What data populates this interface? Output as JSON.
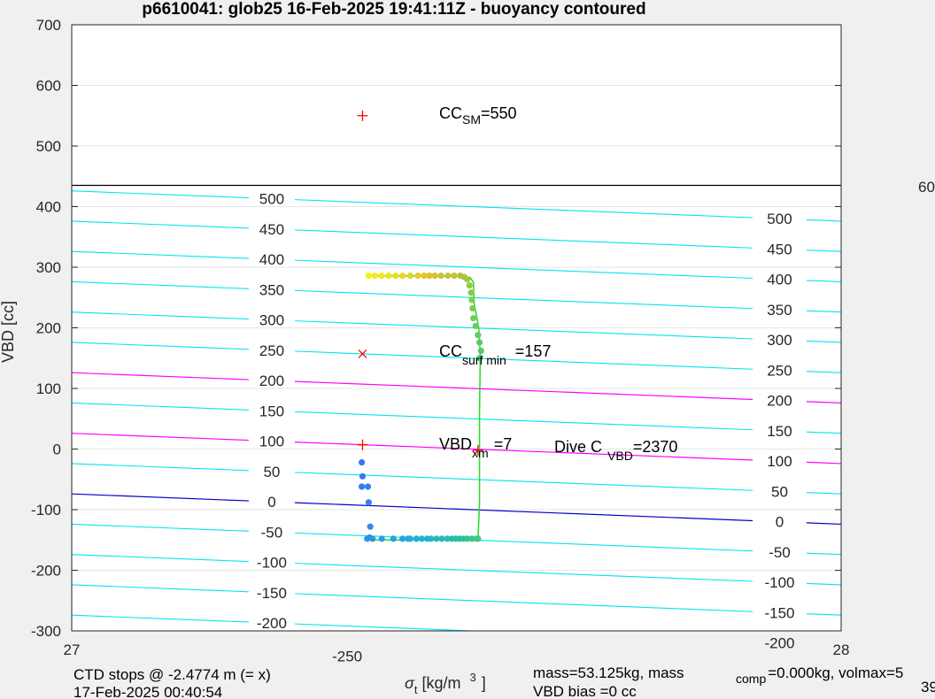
{
  "chart_data": {
    "type": "scatter",
    "title": "p6610041: glob25 16-Feb-2025 19:41:11Z - buoyancy contoured",
    "ylabel": "VBD [cc]",
    "xlabel_symbol": "σ",
    "xlabel_sub": "t",
    "xlabel_units": " [kg/m",
    "xlabel_sup": "3",
    "xlabel_close": "]",
    "xlim": [
      27,
      28
    ],
    "ylim": [
      -300,
      700
    ],
    "x_ticks": [
      "27",
      "28"
    ],
    "y_ticks": [
      700,
      600,
      500,
      400,
      300,
      200,
      100,
      0,
      -100,
      -200,
      -300
    ],
    "grid": true,
    "contours": {
      "color_regular": "#00e5ee",
      "color_highlight": "#ff00ff",
      "color_zero": "#0000cc",
      "levels": [
        500,
        450,
        400,
        350,
        300,
        250,
        200,
        150,
        100,
        50,
        0,
        -50,
        -100,
        -150,
        -200,
        -250
      ],
      "highlight_levels": [
        200,
        100
      ],
      "zero_level": 0,
      "left_labels": [
        "500",
        "450",
        "400",
        "350",
        "300",
        "250",
        "200",
        "150",
        "100",
        "50",
        "0",
        "-50",
        "-100",
        "-150",
        "-200",
        "-250"
      ],
      "right_labels": [
        "500",
        "450",
        "400",
        "350",
        "300",
        "250",
        "200",
        "150",
        "100",
        "50",
        "0",
        "-50",
        "-100",
        "-150",
        "-200"
      ]
    },
    "black_line": {
      "y": 435,
      "label": "60"
    },
    "markers": [
      {
        "type": "plus",
        "x": 27.378,
        "y": 550,
        "color": "#ff0000"
      },
      {
        "type": "cross",
        "x": 27.378,
        "y": 157,
        "color": "#ff0000"
      },
      {
        "type": "plus",
        "x": 27.378,
        "y": 7,
        "color": "#ff0000"
      },
      {
        "type": "plus",
        "x": 27.528,
        "y": -2,
        "color": "#ff0000"
      }
    ],
    "annotations": {
      "cc_sm": {
        "main": "CC",
        "sub": "SM",
        "rest": "=550"
      },
      "cc_surf": {
        "main": "CC",
        "sub": "surf min",
        "rest": "=157"
      },
      "vbd_xm": {
        "main": "VBD",
        "sub": "xm",
        "rest": "=7"
      },
      "dive_c": {
        "main": "Dive C",
        "sub": "VBD",
        "rest": "=2370"
      }
    },
    "trace_line": {
      "color": "#22dd22",
      "points": [
        [
          27.385,
          -150
        ],
        [
          27.528,
          -150
        ],
        [
          27.53,
          -90
        ],
        [
          27.53,
          60
        ],
        [
          27.531,
          155
        ],
        [
          27.529,
          200
        ],
        [
          27.523,
          240
        ],
        [
          27.522,
          275
        ],
        [
          27.518,
          283
        ],
        [
          27.505,
          285
        ],
        [
          27.385,
          286
        ]
      ]
    },
    "series": [
      {
        "points": [
          [
            27.377,
            -22
          ],
          [
            27.378,
            -45
          ],
          [
            27.377,
            -62
          ],
          [
            27.385,
            -62
          ],
          [
            27.386,
            -88
          ],
          [
            27.388,
            -128
          ],
          [
            27.387,
            -146
          ],
          [
            27.384,
            -148
          ],
          [
            27.391,
            -148
          ],
          [
            27.403,
            -148
          ],
          [
            27.418,
            -148
          ],
          [
            27.43,
            -148
          ],
          [
            27.437,
            -148
          ],
          [
            27.44,
            -148
          ],
          [
            27.448,
            -148
          ],
          [
            27.455,
            -148
          ],
          [
            27.462,
            -148
          ],
          [
            27.467,
            -148
          ],
          [
            27.474,
            -148
          ],
          [
            27.481,
            -148
          ],
          [
            27.488,
            -148
          ],
          [
            27.494,
            -148
          ],
          [
            27.499,
            -148
          ],
          [
            27.504,
            -148
          ],
          [
            27.509,
            -148
          ],
          [
            27.514,
            -148
          ],
          [
            27.52,
            -148
          ],
          [
            27.526,
            -148
          ],
          [
            27.528,
            -148
          ]
        ]
      },
      {
        "points": [
          [
            27.53,
            150
          ],
          [
            27.532,
            162
          ],
          [
            27.53,
            176
          ],
          [
            27.528,
            188
          ],
          [
            27.525,
            203
          ],
          [
            27.522,
            216
          ],
          [
            27.521,
            232
          ],
          [
            27.52,
            246
          ],
          [
            27.519,
            258
          ],
          [
            27.517,
            270
          ],
          [
            27.514,
            280
          ],
          [
            27.51,
            284
          ],
          [
            27.505,
            286
          ],
          [
            27.497,
            286
          ],
          [
            27.489,
            286
          ],
          [
            27.48,
            286
          ],
          [
            27.472,
            286
          ],
          [
            27.465,
            286
          ],
          [
            27.458,
            286
          ],
          [
            27.45,
            286
          ],
          [
            27.44,
            286
          ],
          [
            27.43,
            286
          ],
          [
            27.421,
            286
          ],
          [
            27.412,
            286
          ],
          [
            27.403,
            286
          ],
          [
            27.394,
            286
          ],
          [
            27.386,
            286
          ]
        ]
      }
    ]
  },
  "footer": {
    "ctd_stops": "CTD stops @ -2.4774 m (= x)",
    "ctd_date": "17-Feb-2025 00:40:54",
    "mass_line_a": "mass=53.125kg, mass",
    "mass_comp_sub": "comp",
    "mass_line_b": "=0.000kg, volmax=5",
    "vbd_bias": "VBD bias =0 cc",
    "tail_number": "39"
  }
}
